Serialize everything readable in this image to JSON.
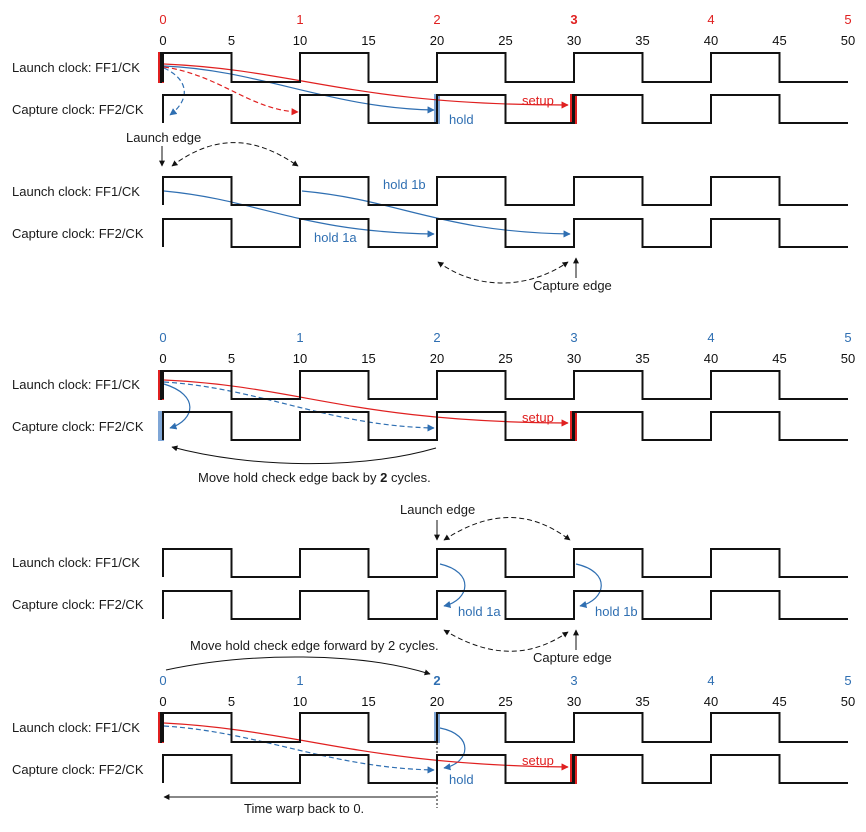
{
  "colors": {
    "red": "#e02020",
    "blue": "#2f6fb2",
    "black": "#111111",
    "highlight": "#7fa6d6"
  },
  "cycle_labels": [
    "0",
    "1",
    "2",
    "3",
    "4",
    "5"
  ],
  "time_ticks": [
    "0",
    "5",
    "10",
    "15",
    "20",
    "25",
    "30",
    "35",
    "40",
    "45",
    "50"
  ],
  "signals": {
    "launch": "Launch clock:   FF1/CK",
    "capture": "Capture clock:   FF2/CK"
  },
  "sections": [
    {
      "id": "s1",
      "cycle_label_color": "red",
      "bold_cycle": "3",
      "labels": {
        "hold": "hold",
        "setup": "setup",
        "launch_edge": "Launch edge"
      }
    },
    {
      "id": "s2",
      "labels": {
        "hold_1a": "hold 1a",
        "hold_1b": "hold 1b",
        "capture_edge": "Capture edge"
      }
    },
    {
      "id": "s3",
      "cycle_label_color": "blue",
      "labels": {
        "setup": "setup",
        "note_prefix": "Move hold check edge back by ",
        "note_bold": "2",
        "note_suffix": " cycles."
      }
    },
    {
      "id": "s4",
      "labels": {
        "launch_edge": "Launch edge",
        "hold_1a": "hold 1a",
        "hold_1b": "hold 1b",
        "capture_edge": "Capture edge"
      }
    },
    {
      "id": "s5",
      "cycle_label_color": "blue",
      "bold_cycle": "2",
      "labels": {
        "note_forward": "Move hold check edge forward by 2 cycles.",
        "hold": "hold",
        "setup": "setup",
        "time_warp": "Time warp back to 0."
      }
    }
  ]
}
